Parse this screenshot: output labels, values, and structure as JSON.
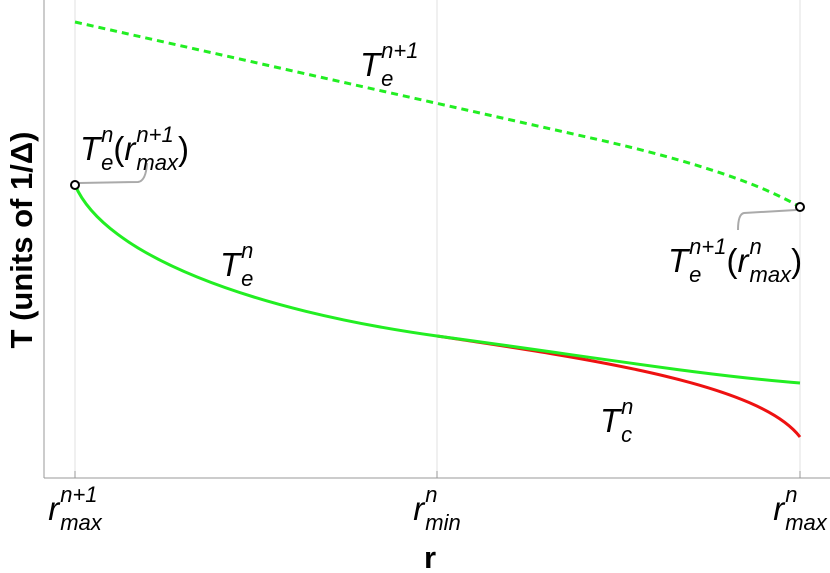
{
  "axes": {
    "x_label": "r",
    "y_label": "T (units of 1/Δ)",
    "x_ticks": [
      {
        "base": "r",
        "sup": "n+1",
        "sub": "max"
      },
      {
        "base": "r",
        "sup": "n",
        "sub": "min"
      },
      {
        "base": "r",
        "sup": "n",
        "sub": "max"
      }
    ]
  },
  "curve_labels": [
    [
      {
        "base": "T",
        "sup": "n+1",
        "sub": "e"
      }
    ],
    [
      {
        "base": "T",
        "sup": "n",
        "sub": "e"
      }
    ],
    [
      {
        "base": "T",
        "sup": "n",
        "sub": "c"
      }
    ]
  ],
  "annotations": [
    [
      {
        "base": "T",
        "sup": "n",
        "sub": "e"
      },
      {
        "base": "("
      },
      {
        "base": "r",
        "sup": "n+1",
        "sub": "max"
      },
      {
        "base": ")"
      }
    ],
    [
      {
        "base": "T",
        "sup": "n+1",
        "sub": "e"
      },
      {
        "base": "("
      },
      {
        "base": "r",
        "sup": "n",
        "sub": "max"
      },
      {
        "base": ")"
      }
    ]
  ]
}
